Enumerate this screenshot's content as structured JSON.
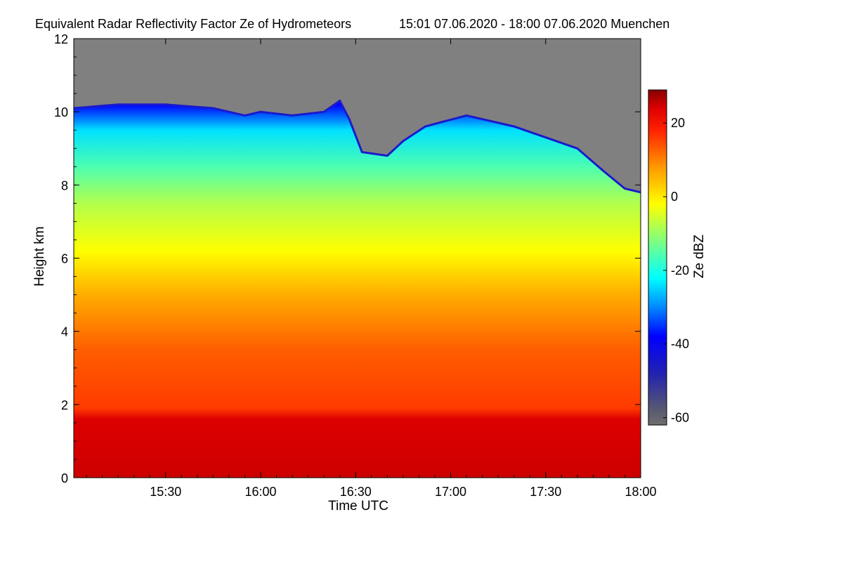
{
  "chart_data": {
    "type": "heatmap",
    "title": "Equivalent Radar Reflectivity Factor Ze of Hydrometeors",
    "subtitle": "15:01 07.06.2020 - 18:00 07.06.2020 Muenchen",
    "xlabel": "Time UTC",
    "ylabel": "Height km",
    "xlim": [
      "15:01",
      "18:00"
    ],
    "ylim": [
      0,
      12
    ],
    "x_ticks": [
      "15:30",
      "16:00",
      "16:30",
      "17:00",
      "17:30",
      "18:00"
    ],
    "y_ticks": [
      "0",
      "2",
      "4",
      "6",
      "8",
      "10",
      "12"
    ],
    "colorbar": {
      "label": "Ze dBZ",
      "range": [
        -62,
        29
      ],
      "ticks": [
        "20",
        "0",
        "-20",
        "-40",
        "-60"
      ],
      "tick_values": [
        20,
        0,
        -20,
        -40,
        -60
      ],
      "stops": [
        {
          "value": -62,
          "color": "#6e6e6e"
        },
        {
          "value": -58,
          "color": "#5a5a70"
        },
        {
          "value": -48,
          "color": "#2222b0"
        },
        {
          "value": -38,
          "color": "#0000ff"
        },
        {
          "value": -30,
          "color": "#0088ff"
        },
        {
          "value": -22,
          "color": "#00ffff"
        },
        {
          "value": -12,
          "color": "#7fff7f"
        },
        {
          "value": -2,
          "color": "#ffff00"
        },
        {
          "value": 8,
          "color": "#ff9900"
        },
        {
          "value": 18,
          "color": "#ff2200"
        },
        {
          "value": 24,
          "color": "#dd0000"
        },
        {
          "value": 29,
          "color": "#880000"
        }
      ]
    },
    "no_signal_color": "#808080",
    "cloud_top_km": [
      {
        "time": "15:01",
        "height": 10.1
      },
      {
        "time": "15:15",
        "height": 10.2
      },
      {
        "time": "15:30",
        "height": 10.2
      },
      {
        "time": "15:45",
        "height": 10.1
      },
      {
        "time": "15:55",
        "height": 9.9
      },
      {
        "time": "16:00",
        "height": 10.0
      },
      {
        "time": "16:10",
        "height": 9.9
      },
      {
        "time": "16:20",
        "height": 10.0
      },
      {
        "time": "16:25",
        "height": 10.3
      },
      {
        "time": "16:28",
        "height": 9.8
      },
      {
        "time": "16:32",
        "height": 8.9
      },
      {
        "time": "16:40",
        "height": 8.8
      },
      {
        "time": "16:45",
        "height": 9.2
      },
      {
        "time": "16:52",
        "height": 9.6
      },
      {
        "time": "17:05",
        "height": 9.9
      },
      {
        "time": "17:20",
        "height": 9.6
      },
      {
        "time": "17:30",
        "height": 9.3
      },
      {
        "time": "17:40",
        "height": 9.0
      },
      {
        "time": "17:48",
        "height": 8.4
      },
      {
        "time": "17:55",
        "height": 7.9
      },
      {
        "time": "18:00",
        "height": 7.8
      }
    ],
    "ze_profile_dBZ": [
      {
        "height": 0.0,
        "ze": 25
      },
      {
        "height": 1.6,
        "ze": 24
      },
      {
        "height": 1.9,
        "ze": 16
      },
      {
        "height": 3.5,
        "ze": 13
      },
      {
        "height": 5.0,
        "ze": 6
      },
      {
        "height": 6.2,
        "ze": -2
      },
      {
        "height": 7.5,
        "ze": -8
      },
      {
        "height": 8.5,
        "ze": -16
      },
      {
        "height": 9.5,
        "ze": -24
      },
      {
        "height": 10.2,
        "ze": -38
      }
    ]
  }
}
